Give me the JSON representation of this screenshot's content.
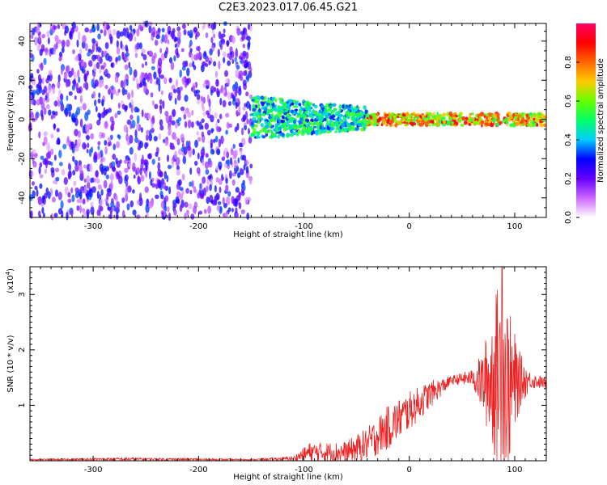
{
  "title": "C2E3.2023.017.06.45.G21",
  "chart_data": [
    {
      "type": "heatmap",
      "xlabel": "Height of straight line (km)",
      "ylabel": "Frequency (Hz)",
      "xlim": [
        -360,
        130
      ],
      "ylim": [
        -50,
        49
      ],
      "xticks": [
        -300,
        -200,
        -100,
        0,
        100
      ],
      "yticks": [
        -40,
        -20,
        0,
        20,
        40
      ],
      "colorbar": {
        "label": "Normalized spectral amplitude",
        "range": [
          0.0,
          1.0
        ],
        "ticks": [
          0.0,
          0.2,
          0.4,
          0.6,
          0.8
        ],
        "colors": [
          "#ffffff",
          "#cc66ff",
          "#6600ff",
          "#0000ff",
          "#00ccff",
          "#00ff66",
          "#66ff00",
          "#ffcc00",
          "#ff6600",
          "#ff0000",
          "#ff0066"
        ]
      },
      "regions": [
        {
          "x_range": [
            -360,
            -150
          ],
          "freq_range": [
            -50,
            49
          ],
          "amplitude_range": [
            0.05,
            0.35
          ]
        },
        {
          "x_range": [
            -150,
            -40
          ],
          "freq_range": [
            -10,
            12
          ],
          "amplitude_range": [
            0.3,
            0.6
          ]
        },
        {
          "x_range": [
            -40,
            130
          ],
          "freq_range": [
            -3,
            3
          ],
          "amplitude_range": [
            0.5,
            0.95
          ]
        }
      ]
    },
    {
      "type": "line",
      "xlabel": "Height of straight line (km)",
      "ylabel": "SNR (10 * v/v)",
      "y_multiplier": "(x10",
      "y_multiplier_exp": "4",
      "xlim": [
        -360,
        130
      ],
      "ylim": [
        0,
        3.5
      ],
      "xticks": [
        -300,
        -200,
        -100,
        0,
        100
      ],
      "yticks": [
        1,
        2,
        3
      ],
      "color": "#ee2222",
      "envelope": [
        {
          "x": -360,
          "mean": 0.02,
          "spread": 0.01
        },
        {
          "x": -270,
          "mean": 0.03,
          "spread": 0.03
        },
        {
          "x": -150,
          "mean": 0.02,
          "spread": 0.01
        },
        {
          "x": -110,
          "mean": 0.04,
          "spread": 0.04
        },
        {
          "x": -95,
          "mean": 0.15,
          "spread": 0.18
        },
        {
          "x": -60,
          "mean": 0.15,
          "spread": 0.2
        },
        {
          "x": -40,
          "mean": 0.3,
          "spread": 0.3
        },
        {
          "x": -20,
          "mean": 0.6,
          "spread": 0.4
        },
        {
          "x": 0,
          "mean": 0.9,
          "spread": 0.35
        },
        {
          "x": 20,
          "mean": 1.2,
          "spread": 0.25
        },
        {
          "x": 40,
          "mean": 1.45,
          "spread": 0.08
        },
        {
          "x": 60,
          "mean": 1.5,
          "spread": 0.15
        },
        {
          "x": 70,
          "mean": 1.4,
          "spread": 0.6
        },
        {
          "x": 80,
          "mean": 1.5,
          "spread": 1.4
        },
        {
          "x": 88,
          "mean": 1.6,
          "spread": 1.9
        },
        {
          "x": 95,
          "mean": 1.3,
          "spread": 1.4
        },
        {
          "x": 105,
          "mean": 1.45,
          "spread": 0.5
        },
        {
          "x": 115,
          "mean": 1.45,
          "spread": 0.15
        },
        {
          "x": 130,
          "mean": 1.4,
          "spread": 0.1
        }
      ],
      "peak": {
        "x": 88,
        "y": 3.5
      }
    }
  ]
}
